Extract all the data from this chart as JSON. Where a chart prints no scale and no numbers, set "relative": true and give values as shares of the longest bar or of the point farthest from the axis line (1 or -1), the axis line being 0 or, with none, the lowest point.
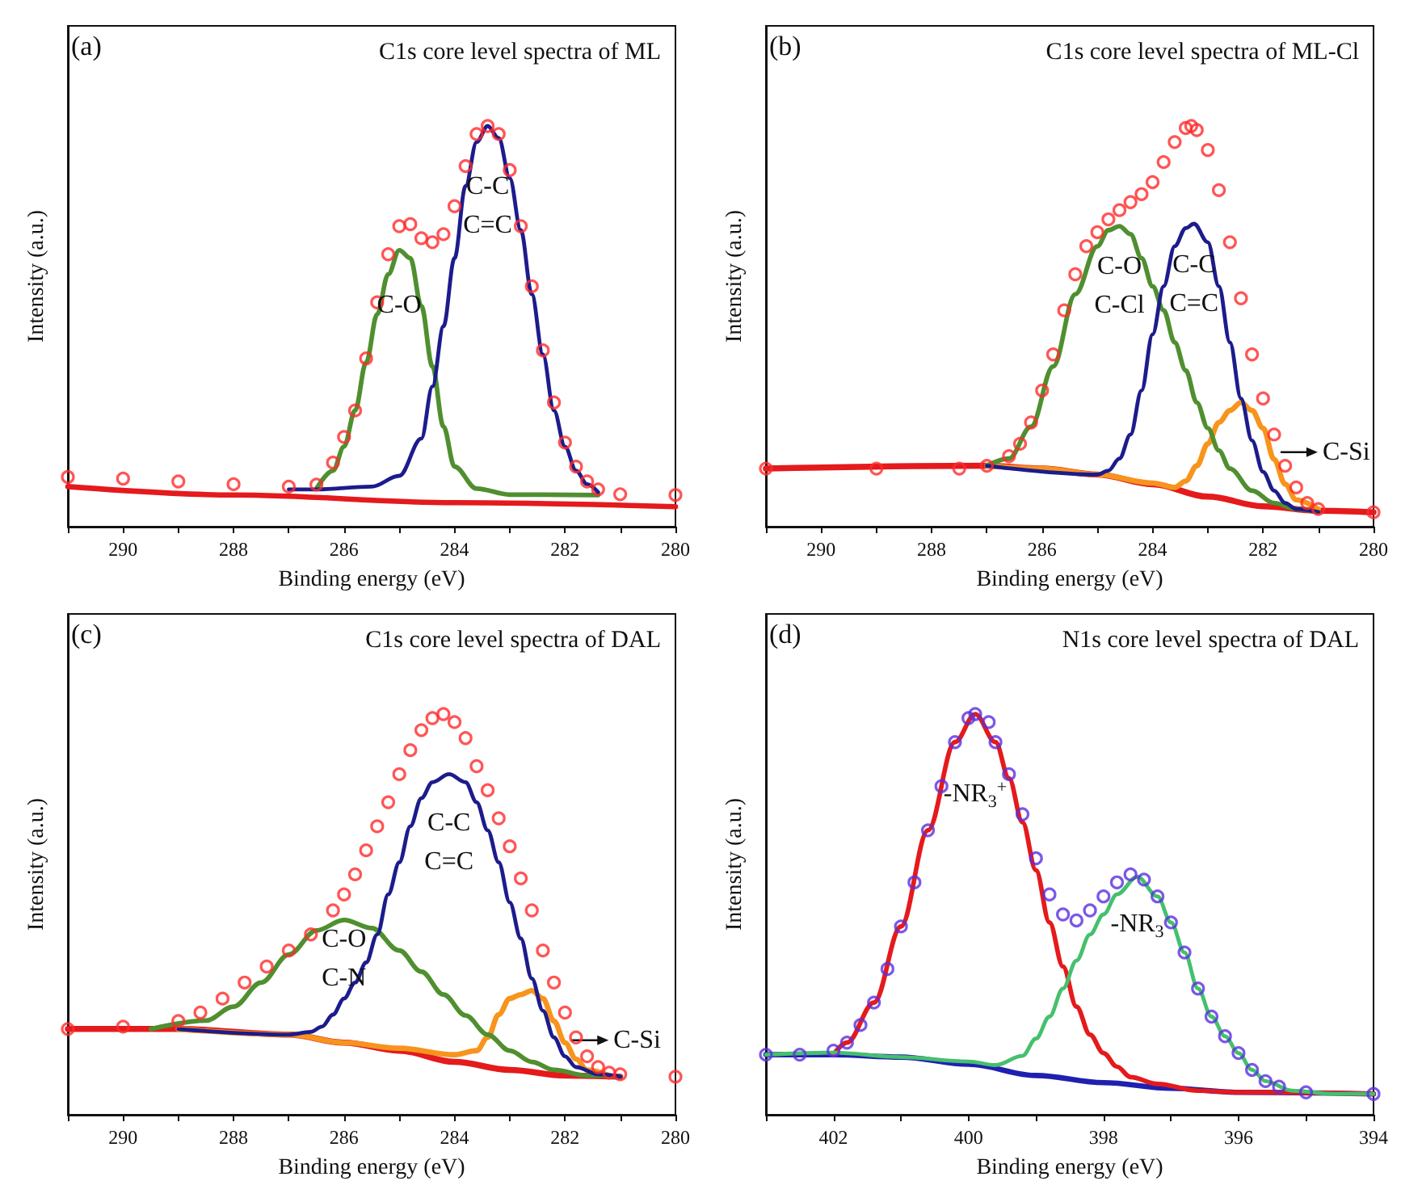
{
  "chart_data": [
    {
      "type": "line",
      "title": "C1s core level spectra of ML",
      "xlabel": "Binding energy (eV)",
      "ylabel": "Intensity (a.u.)",
      "relative": true,
      "tick_labels": "x",
      "marker": "none",
      "line_style": "solid",
      "xlim": [
        291,
        280
      ],
      "xticks": [
        {
          "value": 291,
          "label": null
        },
        290,
        {
          "value": 289,
          "label": null
        },
        288,
        {
          "value": 287,
          "label": null
        },
        286,
        {
          "value": 285,
          "label": null
        },
        284,
        {
          "value": 283,
          "label": null
        },
        282,
        {
          "value": 281,
          "label": null
        },
        280
      ],
      "annotations": [
        "(a)"
      ],
      "series": [
        {
          "type": "scatter",
          "marker": "circle",
          "color": "#ff2a2a",
          "x": [
            291,
            290,
            289,
            288,
            287,
            286.5,
            286.2,
            286,
            285.8,
            285.6,
            285.4,
            285.2,
            285,
            284.8,
            284.6,
            284.4,
            284.2,
            284,
            283.8,
            283.6,
            283.4,
            283.2,
            283,
            282.8,
            282.6,
            282.4,
            282.2,
            282,
            281.8,
            281.6,
            281.4,
            281,
            280
          ],
          "values": [
            0.124,
            0.12,
            0.113,
            0.106,
            0.1,
            0.105,
            0.16,
            0.224,
            0.29,
            0.42,
            0.56,
            0.68,
            0.75,
            0.755,
            0.72,
            0.71,
            0.73,
            0.8,
            0.9,
            0.98,
            1,
            0.98,
            0.89,
            0.75,
            0.6,
            0.44,
            0.31,
            0.21,
            0.15,
            0.113,
            0.093,
            0.081,
            0.079
          ]
        },
        {
          "color": "#e41a1c",
          "x": [
            291,
            288,
            284,
            280
          ],
          "values": [
            0.1,
            0.079,
            0.06,
            0.05
          ]
        },
        {
          "name": "C-O",
          "color": "#4f8f2f",
          "x": [
            286.5,
            286.2,
            286,
            285.8,
            285.6,
            285.4,
            285.2,
            285,
            284.8,
            284.6,
            284.4,
            284.2,
            284,
            283.6,
            283,
            281.4
          ],
          "values": [
            0.095,
            0.14,
            0.2,
            0.29,
            0.41,
            0.53,
            0.63,
            0.69,
            0.67,
            0.55,
            0.4,
            0.25,
            0.15,
            0.095,
            0.08,
            0.079
          ]
        },
        {
          "name": "C-C\nC=C",
          "color": "#1c1c8c",
          "x": [
            287,
            286.5,
            285.5,
            285,
            284.6,
            284.4,
            284.2,
            284,
            283.8,
            283.6,
            283.4,
            283.2,
            283,
            282.8,
            282.6,
            282.4,
            282.2,
            282,
            281.8,
            281.6,
            281.4
          ],
          "values": [
            0.093,
            0.093,
            0.1,
            0.127,
            0.22,
            0.35,
            0.5,
            0.67,
            0.85,
            0.96,
            1,
            0.97,
            0.87,
            0.74,
            0.58,
            0.43,
            0.29,
            0.2,
            0.14,
            0.106,
            0.086
          ]
        }
      ]
    },
    {
      "type": "line",
      "title": "C1s core level spectra of ML-Cl",
      "xlabel": "Binding energy (eV)",
      "ylabel": "Intensity (a.u.)",
      "relative": true,
      "tick_labels": "x",
      "marker": "none",
      "line_style": "solid",
      "xlim": [
        291,
        280
      ],
      "xticks": [
        {
          "value": 291,
          "label": null
        },
        290,
        {
          "value": 289,
          "label": null
        },
        288,
        {
          "value": 287,
          "label": null
        },
        286,
        {
          "value": 285,
          "label": null
        },
        284,
        {
          "value": 283,
          "label": null
        },
        282,
        {
          "value": 281,
          "label": null
        },
        280
      ],
      "annotations": [
        "(b)"
      ],
      "series": [
        {
          "type": "scatter",
          "marker": "circle",
          "color": "#ff2a2a",
          "x": [
            291,
            289,
            287.5,
            287,
            286.6,
            286.4,
            286.2,
            286,
            285.8,
            285.6,
            285.4,
            285.2,
            285,
            284.8,
            284.6,
            284.4,
            284.2,
            284,
            283.8,
            283.6,
            283.4,
            283.3,
            283.2,
            283,
            282.8,
            282.6,
            282.4,
            282.2,
            282,
            281.8,
            281.6,
            281.4,
            281.2,
            281,
            280
          ],
          "values": [
            0.145,
            0.145,
            0.145,
            0.152,
            0.176,
            0.207,
            0.26,
            0.34,
            0.43,
            0.54,
            0.63,
            0.7,
            0.735,
            0.767,
            0.79,
            0.81,
            0.83,
            0.86,
            0.91,
            0.96,
            0.995,
            1,
            0.99,
            0.94,
            0.84,
            0.71,
            0.57,
            0.43,
            0.32,
            0.23,
            0.152,
            0.098,
            0.059,
            0.044,
            0.036
          ]
        },
        {
          "color": "#e41a1c",
          "x": [
            291,
            287,
            286,
            285,
            284,
            283,
            282,
            281,
            280
          ],
          "values": [
            0.145,
            0.152,
            0.145,
            0.13,
            0.106,
            0.075,
            0.051,
            0.04,
            0.036
          ]
        },
        {
          "name": "C-Si",
          "color": "#f7941d",
          "x": [
            287,
            286,
            285,
            284,
            283.6,
            283.4,
            283.2,
            283,
            282.8,
            282.6,
            282.4,
            282.2,
            282,
            281.8,
            281.6,
            281.4,
            281
          ],
          "values": [
            0.152,
            0.145,
            0.13,
            0.109,
            0.098,
            0.114,
            0.152,
            0.207,
            0.26,
            0.29,
            0.31,
            0.29,
            0.246,
            0.168,
            0.106,
            0.067,
            0.044
          ]
        },
        {
          "name": "C-O\nC-Cl",
          "color": "#4f8f2f",
          "x": [
            287,
            286.6,
            286.2,
            285.8,
            285.4,
            285,
            284.8,
            284.6,
            284.4,
            284.2,
            284,
            283.8,
            283.6,
            283.4,
            283.2,
            283,
            282.8,
            282.6,
            282.2,
            281.8,
            281.4,
            281
          ],
          "values": [
            0.152,
            0.17,
            0.25,
            0.4,
            0.58,
            0.7,
            0.74,
            0.75,
            0.73,
            0.67,
            0.6,
            0.54,
            0.46,
            0.39,
            0.31,
            0.246,
            0.19,
            0.145,
            0.09,
            0.059,
            0.044,
            0.036
          ]
        },
        {
          "name": "C-C\nC=C",
          "color": "#1c1c8c",
          "x": [
            287,
            285,
            284.8,
            284.6,
            284.4,
            284.2,
            284,
            283.8,
            283.6,
            283.4,
            283.25,
            283,
            282.8,
            282.6,
            282.4,
            282.2,
            282,
            281.8,
            281.6,
            281.4,
            281
          ],
          "values": [
            0.152,
            0.13,
            0.14,
            0.17,
            0.23,
            0.34,
            0.48,
            0.6,
            0.7,
            0.745,
            0.756,
            0.71,
            0.6,
            0.46,
            0.32,
            0.215,
            0.137,
            0.09,
            0.059,
            0.044,
            0.036
          ]
        }
      ]
    },
    {
      "type": "line",
      "title": "C1s core level spectra of DAL",
      "xlabel": "Binding energy (eV)",
      "ylabel": "Intensity (a.u.)",
      "relative": true,
      "tick_labels": "x",
      "marker": "none",
      "line_style": "solid",
      "xlim": [
        291,
        280
      ],
      "xticks": [
        {
          "value": 291,
          "label": null
        },
        290,
        {
          "value": 289,
          "label": null
        },
        288,
        {
          "value": 287,
          "label": null
        },
        286,
        {
          "value": 285,
          "label": null
        },
        284,
        {
          "value": 283,
          "label": null
        },
        282,
        {
          "value": 281,
          "label": null
        },
        280
      ],
      "annotations": [
        "(c)"
      ],
      "series": [
        {
          "type": "scatter",
          "marker": "circle",
          "color": "#ff2a2a",
          "x": [
            291,
            290,
            289,
            288.6,
            288.2,
            287.8,
            287.4,
            287,
            286.6,
            286.2,
            286,
            285.8,
            285.6,
            285.4,
            285.2,
            285,
            284.8,
            284.6,
            284.4,
            284.2,
            284,
            283.8,
            283.6,
            283.4,
            283.2,
            283,
            282.8,
            282.6,
            282.4,
            282.2,
            282,
            281.8,
            281.6,
            281.4,
            281.2,
            281,
            280
          ],
          "values": [
            0.214,
            0.22,
            0.234,
            0.255,
            0.29,
            0.33,
            0.37,
            0.41,
            0.45,
            0.51,
            0.55,
            0.6,
            0.66,
            0.72,
            0.78,
            0.85,
            0.91,
            0.96,
            0.99,
            1,
            0.98,
            0.94,
            0.87,
            0.81,
            0.74,
            0.67,
            0.59,
            0.51,
            0.41,
            0.33,
            0.255,
            0.193,
            0.146,
            0.119,
            0.105,
            0.101,
            0.095
          ]
        },
        {
          "color": "#e41a1c",
          "x": [
            291,
            289,
            287,
            286,
            285,
            284,
            283,
            282,
            281
          ],
          "values": [
            0.214,
            0.214,
            0.2,
            0.18,
            0.16,
            0.132,
            0.112,
            0.098,
            0.095
          ]
        },
        {
          "name": "C-Si",
          "color": "#f7941d",
          "x": [
            289,
            287,
            286,
            285,
            284,
            283.6,
            283.4,
            283.2,
            283,
            282.8,
            282.6,
            282.4,
            282.2,
            282,
            281.8,
            281.6,
            281.2
          ],
          "values": [
            0.214,
            0.2,
            0.18,
            0.166,
            0.15,
            0.16,
            0.193,
            0.25,
            0.29,
            0.3,
            0.31,
            0.29,
            0.234,
            0.18,
            0.139,
            0.112,
            0.098
          ]
        },
        {
          "name": "C-O\nC-N",
          "color": "#4f8f2f",
          "x": [
            289.5,
            288.5,
            288,
            287.5,
            287,
            286.5,
            286,
            285.5,
            285,
            284.6,
            284.2,
            283.8,
            283.4,
            283,
            282.6,
            282.2,
            281.6,
            281
          ],
          "values": [
            0.214,
            0.235,
            0.27,
            0.33,
            0.4,
            0.46,
            0.486,
            0.466,
            0.41,
            0.357,
            0.3,
            0.248,
            0.2,
            0.16,
            0.132,
            0.112,
            0.098,
            0.095
          ]
        },
        {
          "name": "C-C\nC=C",
          "color": "#1c1c8c",
          "x": [
            289,
            287,
            286.6,
            286.4,
            286.2,
            286,
            285.8,
            285.6,
            285.4,
            285.2,
            285,
            284.8,
            284.6,
            284.4,
            284.1,
            283.8,
            283.6,
            283.4,
            283.2,
            283,
            282.8,
            282.6,
            282.4,
            282.2,
            282,
            281.8,
            281.4,
            281
          ],
          "values": [
            0.214,
            0.2,
            0.207,
            0.22,
            0.25,
            0.29,
            0.33,
            0.38,
            0.45,
            0.55,
            0.63,
            0.72,
            0.79,
            0.83,
            0.85,
            0.83,
            0.78,
            0.71,
            0.63,
            0.53,
            0.44,
            0.34,
            0.26,
            0.193,
            0.146,
            0.119,
            0.101,
            0.095
          ]
        }
      ]
    },
    {
      "type": "line",
      "title": "N1s core level spectra of DAL",
      "xlabel": "Binding energy (eV)",
      "ylabel": "Intensity (a.u.)",
      "relative": true,
      "tick_labels": "x",
      "marker": "none",
      "line_style": "solid",
      "xlim": [
        403,
        394
      ],
      "xticks": [
        {
          "value": 403,
          "label": null
        },
        402,
        {
          "value": 401,
          "label": null
        },
        400,
        {
          "value": 399,
          "label": null
        },
        398,
        {
          "value": 397,
          "label": null
        },
        396,
        {
          "value": 395,
          "label": null
        },
        394
      ],
      "annotations": [
        "(d)"
      ],
      "series": [
        {
          "type": "scatter",
          "marker": "circle",
          "color": "#5a2ee0",
          "x": [
            403,
            402.5,
            402,
            401.8,
            401.6,
            401.4,
            401.2,
            401,
            400.8,
            400.6,
            400.4,
            400.2,
            400,
            399.9,
            399.7,
            399.6,
            399.4,
            399.2,
            399,
            398.8,
            398.6,
            398.4,
            398.2,
            398,
            397.8,
            397.6,
            397.4,
            397.2,
            397,
            396.8,
            396.6,
            396.4,
            396.2,
            396,
            395.8,
            395.6,
            395.4,
            395,
            394
          ],
          "values": [
            0.15,
            0.15,
            0.16,
            0.18,
            0.224,
            0.28,
            0.364,
            0.47,
            0.58,
            0.71,
            0.82,
            0.93,
            0.99,
            1,
            0.98,
            0.93,
            0.85,
            0.75,
            0.64,
            0.55,
            0.5,
            0.485,
            0.51,
            0.545,
            0.58,
            0.6,
            0.587,
            0.545,
            0.48,
            0.405,
            0.315,
            0.245,
            0.196,
            0.154,
            0.112,
            0.084,
            0.07,
            0.056,
            0.052
          ]
        },
        {
          "color": "#2020b0",
          "x": [
            403,
            402,
            401,
            400,
            399,
            398,
            397,
            396,
            394
          ],
          "values": [
            0.15,
            0.15,
            0.144,
            0.126,
            0.098,
            0.08,
            0.066,
            0.056,
            0.052
          ]
        },
        {
          "name": "-NR$_{3}$$^{+}$",
          "color": "#e41a1c",
          "x": [
            402,
            401.8,
            401.4,
            401,
            400.6,
            400.2,
            399.9,
            399.6,
            399.4,
            399.2,
            399,
            398.8,
            398.6,
            398.4,
            398.2,
            398,
            397.8,
            397.6,
            397.2,
            396.6,
            396,
            394
          ],
          "values": [
            0.15,
            0.18,
            0.28,
            0.47,
            0.71,
            0.93,
            1,
            0.93,
            0.84,
            0.73,
            0.61,
            0.48,
            0.37,
            0.27,
            0.2,
            0.154,
            0.12,
            0.094,
            0.077,
            0.06,
            0.056,
            0.052
          ]
        },
        {
          "name": "-NR$_{3}$",
          "color": "#45c06d",
          "x": [
            403,
            402,
            401,
            400,
            399.6,
            399.2,
            399,
            398.8,
            398.6,
            398.4,
            398.2,
            398,
            397.8,
            397.5,
            397.2,
            397,
            396.8,
            396.6,
            396.4,
            396.2,
            396,
            395.8,
            395.6,
            395.2,
            394.6,
            394
          ],
          "values": [
            0.15,
            0.155,
            0.144,
            0.133,
            0.124,
            0.147,
            0.19,
            0.245,
            0.315,
            0.385,
            0.45,
            0.5,
            0.55,
            0.594,
            0.545,
            0.48,
            0.405,
            0.315,
            0.245,
            0.196,
            0.154,
            0.112,
            0.084,
            0.06,
            0.052,
            0.052
          ]
        }
      ]
    }
  ]
}
